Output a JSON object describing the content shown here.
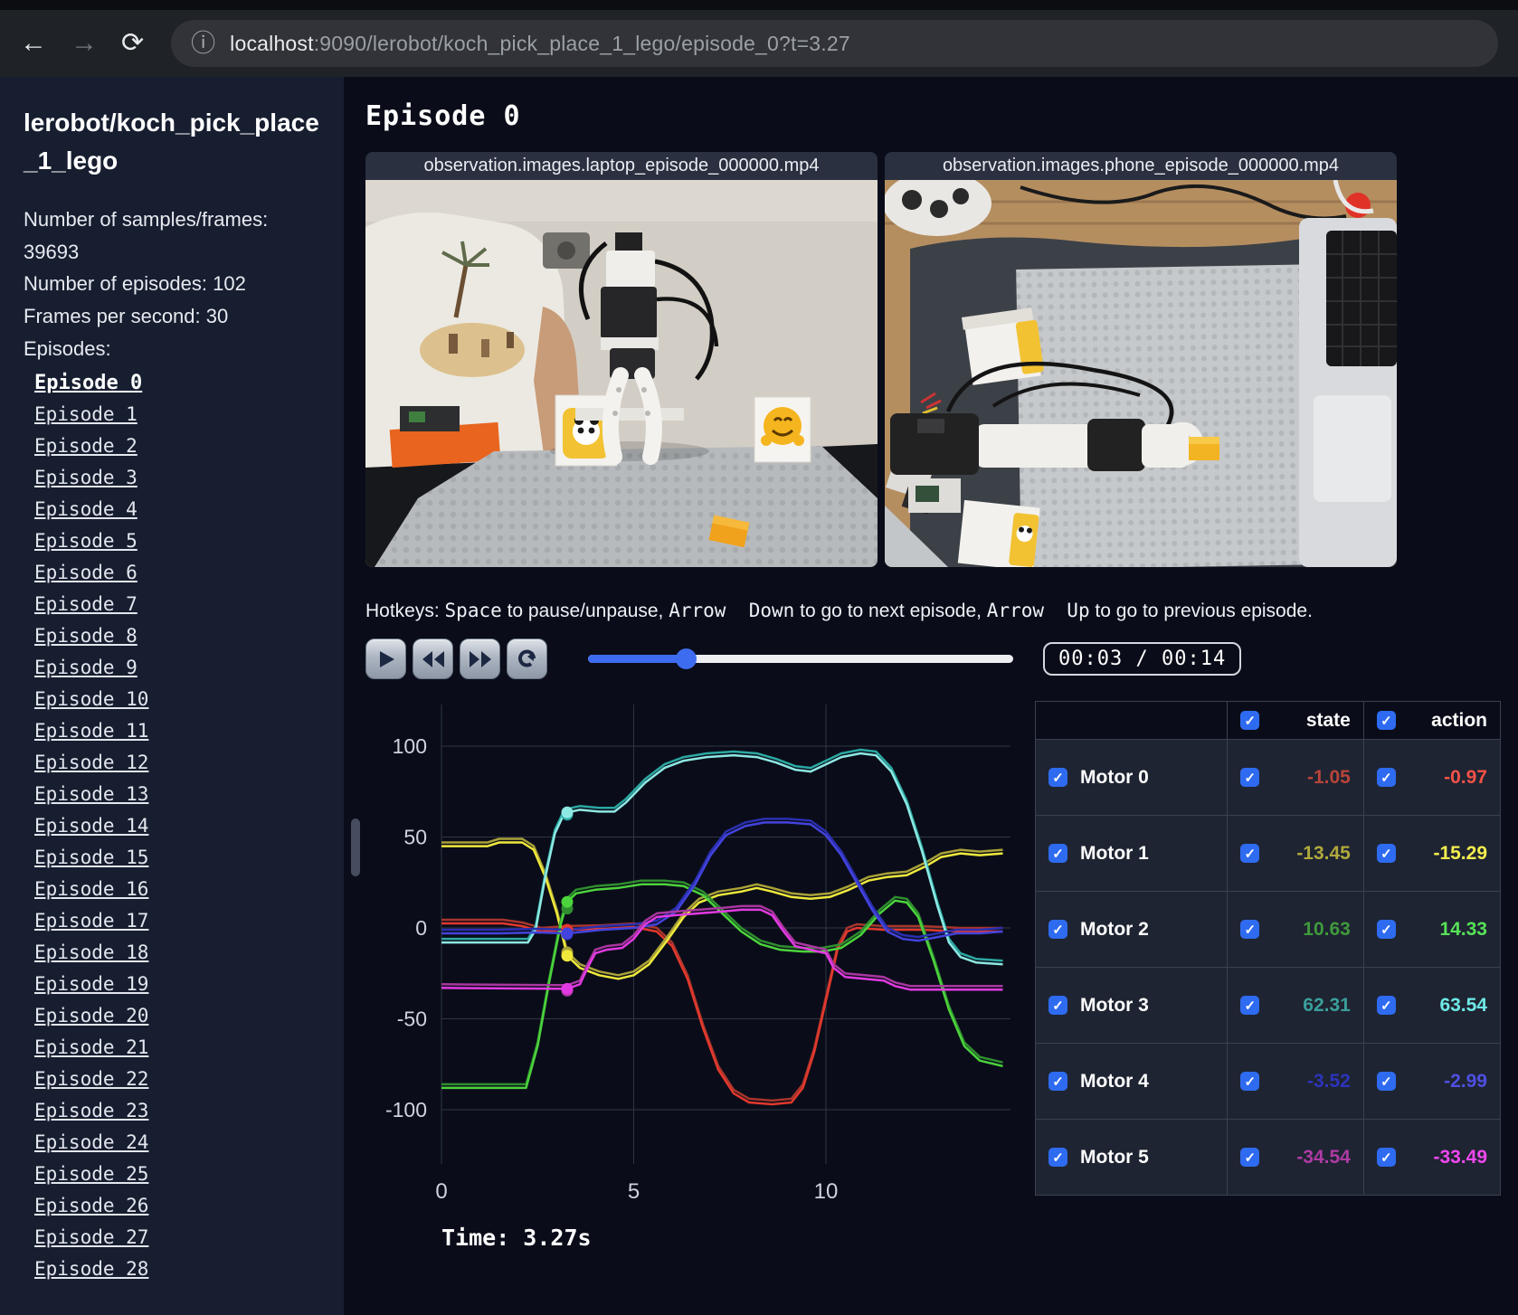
{
  "browser": {
    "icons": {
      "back": "←",
      "forward": "→",
      "reload": "⟳",
      "info": "ⓘ"
    },
    "url_host": "localhost",
    "url_rest": ":9090/lerobot/koch_pick_place_1_lego/episode_0?t=3.27"
  },
  "sidebar": {
    "title": "lerobot/koch_pick_place_1_lego",
    "info_lines": [
      "Number of samples/frames: 39693",
      "Number of episodes: 102",
      "Frames per second: 30"
    ],
    "episodes_label": "Episodes:",
    "active_index": 0,
    "episodes": [
      "Episode 0",
      "Episode 1",
      "Episode 2",
      "Episode 3",
      "Episode 4",
      "Episode 5",
      "Episode 6",
      "Episode 7",
      "Episode 8",
      "Episode 9",
      "Episode 10",
      "Episode 11",
      "Episode 12",
      "Episode 13",
      "Episode 14",
      "Episode 15",
      "Episode 16",
      "Episode 17",
      "Episode 18",
      "Episode 19",
      "Episode 20",
      "Episode 21",
      "Episode 22",
      "Episode 23",
      "Episode 24",
      "Episode 25",
      "Episode 26",
      "Episode 27",
      "Episode 28"
    ]
  },
  "main": {
    "heading": "Episode 0",
    "videos": [
      {
        "title": "observation.images.laptop_episode_000000.mp4"
      },
      {
        "title": "observation.images.phone_episode_000000.mp4"
      }
    ],
    "hotkeys": {
      "prefix": "Hotkeys: ",
      "key1": "Space",
      "mid1": " to pause/unpause, ",
      "key2": "Arrow  Down",
      "mid2": " to go to next episode, ",
      "key3": "Arrow  Up",
      "mid3": " to go to previous episode."
    },
    "controls": {
      "time_display": "00:03 / 00:14",
      "progress_pct": 23
    },
    "chart_data": {
      "type": "line",
      "x_ticks": [
        0,
        5,
        10
      ],
      "y_ticks": [
        100,
        50,
        0,
        -50,
        -100
      ],
      "xlim": [
        -0.35,
        14.8
      ],
      "ylim": [
        -117,
        117
      ],
      "grid": true,
      "current_time": 3.27,
      "time_label": "Time: 3.27s",
      "series": [
        {
          "name": "Motor 0",
          "state_color": "#a8352c",
          "action_color": "#e2382c",
          "state_at_t": -1.05,
          "action_at_t": -0.97,
          "points": [
            [
              0,
              2.5
            ],
            [
              1.6,
              2.5
            ],
            [
              2.1,
              1
            ],
            [
              2.6,
              -2
            ],
            [
              3.27,
              -0.97
            ],
            [
              4.2,
              -0.5
            ],
            [
              5,
              0.5
            ],
            [
              5.6,
              -2
            ],
            [
              6,
              -10
            ],
            [
              6.4,
              -28
            ],
            [
              6.8,
              -55
            ],
            [
              7.2,
              -78
            ],
            [
              7.6,
              -91
            ],
            [
              8,
              -96
            ],
            [
              8.6,
              -97
            ],
            [
              9.1,
              -96
            ],
            [
              9.4,
              -88
            ],
            [
              9.7,
              -68
            ],
            [
              10,
              -40
            ],
            [
              10.3,
              -12
            ],
            [
              10.55,
              -2
            ],
            [
              10.8,
              0
            ],
            [
              11.5,
              -1
            ],
            [
              12.5,
              -1
            ],
            [
              13.5,
              -2
            ],
            [
              14.6,
              -2
            ]
          ]
        },
        {
          "name": "Motor 1",
          "state_color": "#aaa238",
          "action_color": "#efe93c",
          "state_at_t": -13.45,
          "action_at_t": -15.29,
          "points": [
            [
              0,
              45
            ],
            [
              1.2,
              45
            ],
            [
              1.5,
              47
            ],
            [
              2.1,
              47
            ],
            [
              2.4,
              43
            ],
            [
              2.7,
              28
            ],
            [
              3,
              8
            ],
            [
              3.27,
              -15.29
            ],
            [
              3.6,
              -22
            ],
            [
              4.1,
              -26
            ],
            [
              4.6,
              -28
            ],
            [
              5,
              -26
            ],
            [
              5.4,
              -20
            ],
            [
              5.9,
              -6
            ],
            [
              6.3,
              6
            ],
            [
              6.7,
              14
            ],
            [
              7.2,
              18
            ],
            [
              7.8,
              20
            ],
            [
              8.2,
              22
            ],
            [
              8.6,
              20
            ],
            [
              9.1,
              17
            ],
            [
              9.6,
              16
            ],
            [
              10.1,
              17
            ],
            [
              10.6,
              21
            ],
            [
              11.1,
              26
            ],
            [
              11.6,
              28
            ],
            [
              12.1,
              29
            ],
            [
              12.6,
              34
            ],
            [
              13,
              39
            ],
            [
              13.5,
              41
            ],
            [
              14,
              40
            ],
            [
              14.6,
              41
            ]
          ]
        },
        {
          "name": "Motor 2",
          "state_color": "#2f8f2f",
          "action_color": "#4cd43c",
          "state_at_t": 10.63,
          "action_at_t": 14.33,
          "points": [
            [
              0,
              -88
            ],
            [
              2.2,
              -88
            ],
            [
              2.5,
              -65
            ],
            [
              2.8,
              -30
            ],
            [
              3.1,
              2
            ],
            [
              3.27,
              14.33
            ],
            [
              3.5,
              19
            ],
            [
              4,
              21
            ],
            [
              4.6,
              22
            ],
            [
              5.2,
              24
            ],
            [
              5.8,
              24
            ],
            [
              6.3,
              23
            ],
            [
              6.8,
              18
            ],
            [
              7.3,
              8
            ],
            [
              7.8,
              -2
            ],
            [
              8.3,
              -9
            ],
            [
              8.8,
              -12
            ],
            [
              9.4,
              -13
            ],
            [
              9.9,
              -13
            ],
            [
              10.4,
              -11
            ],
            [
              10.9,
              -4
            ],
            [
              11.4,
              8
            ],
            [
              11.8,
              15
            ],
            [
              12.1,
              14
            ],
            [
              12.4,
              6
            ],
            [
              12.8,
              -18
            ],
            [
              13.2,
              -45
            ],
            [
              13.6,
              -65
            ],
            [
              14,
              -73
            ],
            [
              14.6,
              -76
            ]
          ]
        },
        {
          "name": "Motor 3",
          "state_color": "#2ba8a2",
          "action_color": "#8ee8e4",
          "state_at_t": 62.31,
          "action_at_t": 63.54,
          "points": [
            [
              0,
              -8
            ],
            [
              2.25,
              -8
            ],
            [
              2.45,
              -1
            ],
            [
              2.7,
              28
            ],
            [
              2.95,
              52
            ],
            [
              3.15,
              61
            ],
            [
              3.27,
              63.54
            ],
            [
              3.6,
              65
            ],
            [
              4.1,
              64
            ],
            [
              4.5,
              64
            ],
            [
              4.8,
              69
            ],
            [
              5.3,
              80
            ],
            [
              5.8,
              88
            ],
            [
              6.3,
              92
            ],
            [
              6.9,
              94
            ],
            [
              7.6,
              95
            ],
            [
              8.2,
              94
            ],
            [
              8.7,
              91
            ],
            [
              9.2,
              87
            ],
            [
              9.6,
              86
            ],
            [
              10,
              90
            ],
            [
              10.4,
              94
            ],
            [
              10.9,
              96
            ],
            [
              11.3,
              95
            ],
            [
              11.7,
              86
            ],
            [
              12.1,
              68
            ],
            [
              12.5,
              42
            ],
            [
              12.9,
              12
            ],
            [
              13.2,
              -8
            ],
            [
              13.5,
              -16
            ],
            [
              13.9,
              -19
            ],
            [
              14.6,
              -20
            ]
          ]
        },
        {
          "name": "Motor 4",
          "state_color": "#2a2fb0",
          "action_color": "#4343dd",
          "state_at_t": -3.52,
          "action_at_t": -2.99,
          "points": [
            [
              0,
              -3
            ],
            [
              1.5,
              -3
            ],
            [
              2.5,
              -2.5
            ],
            [
              3.27,
              -2.99
            ],
            [
              4.2,
              -1
            ],
            [
              5,
              0
            ],
            [
              5.6,
              2
            ],
            [
              6.1,
              9
            ],
            [
              6.6,
              24
            ],
            [
              7,
              40
            ],
            [
              7.4,
              51
            ],
            [
              7.9,
              56
            ],
            [
              8.4,
              58
            ],
            [
              9,
              58
            ],
            [
              9.6,
              57
            ],
            [
              10,
              51
            ],
            [
              10.4,
              40
            ],
            [
              10.8,
              25
            ],
            [
              11.2,
              10
            ],
            [
              11.6,
              -2
            ],
            [
              12,
              -6
            ],
            [
              12.4,
              -7
            ],
            [
              12.9,
              -5
            ],
            [
              13.4,
              -3
            ],
            [
              14,
              -3
            ],
            [
              14.6,
              -2
            ]
          ]
        },
        {
          "name": "Motor 5",
          "state_color": "#a936a0",
          "action_color": "#e23ae2",
          "state_at_t": -34.54,
          "action_at_t": -33.49,
          "points": [
            [
              0,
              -33
            ],
            [
              3,
              -33.5
            ],
            [
              3.27,
              -33.49
            ],
            [
              3.6,
              -31
            ],
            [
              3.8,
              -22
            ],
            [
              4,
              -14
            ],
            [
              4.3,
              -12
            ],
            [
              4.7,
              -11
            ],
            [
              5,
              -6
            ],
            [
              5.3,
              2
            ],
            [
              5.6,
              6
            ],
            [
              6.1,
              7
            ],
            [
              6.7,
              8
            ],
            [
              7.3,
              9
            ],
            [
              7.8,
              10
            ],
            [
              8.3,
              10
            ],
            [
              8.6,
              7
            ],
            [
              8.9,
              -2
            ],
            [
              9.2,
              -10
            ],
            [
              9.6,
              -12
            ],
            [
              10,
              -14
            ],
            [
              10.2,
              -22
            ],
            [
              10.5,
              -27
            ],
            [
              11,
              -28
            ],
            [
              11.5,
              -29
            ],
            [
              11.8,
              -32
            ],
            [
              12.2,
              -34
            ],
            [
              13,
              -34
            ],
            [
              14.6,
              -34
            ]
          ]
        }
      ]
    },
    "table": {
      "state_header": "state",
      "action_header": "action",
      "rows": [
        {
          "name": "Motor 0",
          "state": "-1.05",
          "action": "-0.97",
          "state_color": "#b8443a",
          "action_color": "#f25248"
        },
        {
          "name": "Motor 1",
          "state": "-13.45",
          "action": "-15.29",
          "state_color": "#b1a93c",
          "action_color": "#f4ee4e"
        },
        {
          "name": "Motor 2",
          "state": "10.63",
          "action": "14.33",
          "state_color": "#3f9a3c",
          "action_color": "#58e158"
        },
        {
          "name": "Motor 3",
          "state": "62.31",
          "action": "63.54",
          "state_color": "#3a9f9b",
          "action_color": "#6fe9e6"
        },
        {
          "name": "Motor 4",
          "state": "-3.52",
          "action": "-2.99",
          "state_color": "#2c34bb",
          "action_color": "#4f4fe2"
        },
        {
          "name": "Motor 5",
          "state": "-34.54",
          "action": "-33.49",
          "state_color": "#ad3ba4",
          "action_color": "#ef48ef"
        }
      ]
    }
  }
}
